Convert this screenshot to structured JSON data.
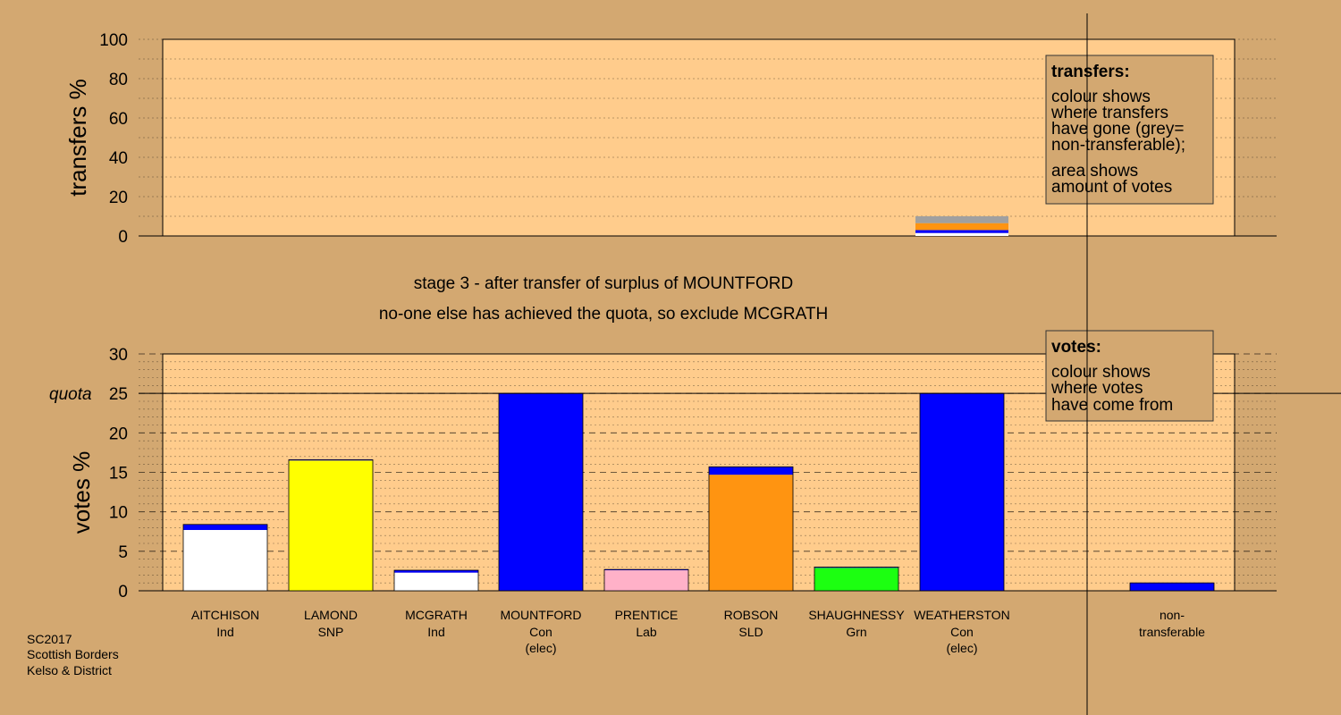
{
  "chart_data": {
    "type": "bar",
    "colors": {
      "background": "#d3a871",
      "plot_area": "#ffcc8c",
      "Ind": "#ffffff",
      "SNP": "#ffff00",
      "Con": "#0000ff",
      "Lab": "#ffb1c8",
      "SLD": "#ff9411",
      "Grn": "#1cff11",
      "non_transferable": "#a0a0a0"
    },
    "transfers_panel": {
      "ylabel": "transfers %",
      "ylim": [
        0,
        100
      ],
      "yticks": [
        0,
        20,
        40,
        60,
        80,
        100
      ],
      "grid": true,
      "bar_position": "WEATHERSTON",
      "stack": [
        {
          "from": "Ind",
          "value": 1.5
        },
        {
          "from": "Con",
          "value": 1.5
        },
        {
          "from": "SLD",
          "value": 3.5
        },
        {
          "from": "non_transferable",
          "value": 3.5
        }
      ]
    },
    "votes_panel": {
      "ylabel": "votes %",
      "ylim": [
        0,
        30
      ],
      "yticks": [
        0,
        5,
        10,
        15,
        20,
        25,
        30
      ],
      "quota": 25,
      "quota_label": "quota",
      "grid": true,
      "candidates": [
        {
          "name": "AITCHISON",
          "party": "Ind",
          "elec": "",
          "segments": [
            {
              "color": "Ind",
              "value": 7.7
            },
            {
              "color": "Con",
              "value": 0.7
            }
          ]
        },
        {
          "name": "LAMOND",
          "party": "SNP",
          "elec": "",
          "segments": [
            {
              "color": "SNP",
              "value": 16.5
            },
            {
              "color": "Con",
              "value": 0.1
            }
          ]
        },
        {
          "name": "MCGRATH",
          "party": "Ind",
          "elec": "",
          "segments": [
            {
              "color": "Ind",
              "value": 2.3
            },
            {
              "color": "Con",
              "value": 0.3
            }
          ]
        },
        {
          "name": "MOUNTFORD",
          "party": "Con",
          "elec": "(elec)",
          "segments": [
            {
              "color": "Con",
              "value": 25
            }
          ]
        },
        {
          "name": "PRENTICE",
          "party": "Lab",
          "elec": "",
          "segments": [
            {
              "color": "Lab",
              "value": 2.6
            },
            {
              "color": "Con",
              "value": 0.1
            }
          ]
        },
        {
          "name": "ROBSON",
          "party": "SLD",
          "elec": "",
          "segments": [
            {
              "color": "SLD",
              "value": 14.7
            },
            {
              "color": "Con",
              "value": 1.0
            }
          ]
        },
        {
          "name": "SHAUGHNESSY",
          "party": "Grn",
          "elec": "",
          "segments": [
            {
              "color": "Grn",
              "value": 2.9
            },
            {
              "color": "Con",
              "value": 0.1
            }
          ]
        },
        {
          "name": "WEATHERSTON",
          "party": "Con",
          "elec": "(elec)",
          "segments": [
            {
              "color": "Con",
              "value": 25
            }
          ]
        }
      ],
      "non_transferable": {
        "label_line1": "non-",
        "label_line2": "transferable",
        "segments": [
          {
            "color": "Con",
            "value": 1.0
          }
        ]
      }
    },
    "stage_text": [
      "stage 3 - after transfer of surplus of MOUNTFORD",
      "no-one else has achieved the quota, so exclude MCGRATH"
    ],
    "legend_transfers": {
      "title": "transfers:",
      "lines": [
        "colour shows",
        "where transfers",
        "have gone (grey=",
        "non-transferable);",
        "area shows",
        "amount of votes"
      ]
    },
    "legend_votes": {
      "title": "votes:",
      "lines": [
        "colour shows",
        "where votes",
        "have come from"
      ]
    },
    "footnote": [
      "SC2017",
      "Scottish Borders",
      "Kelso & District"
    ]
  }
}
